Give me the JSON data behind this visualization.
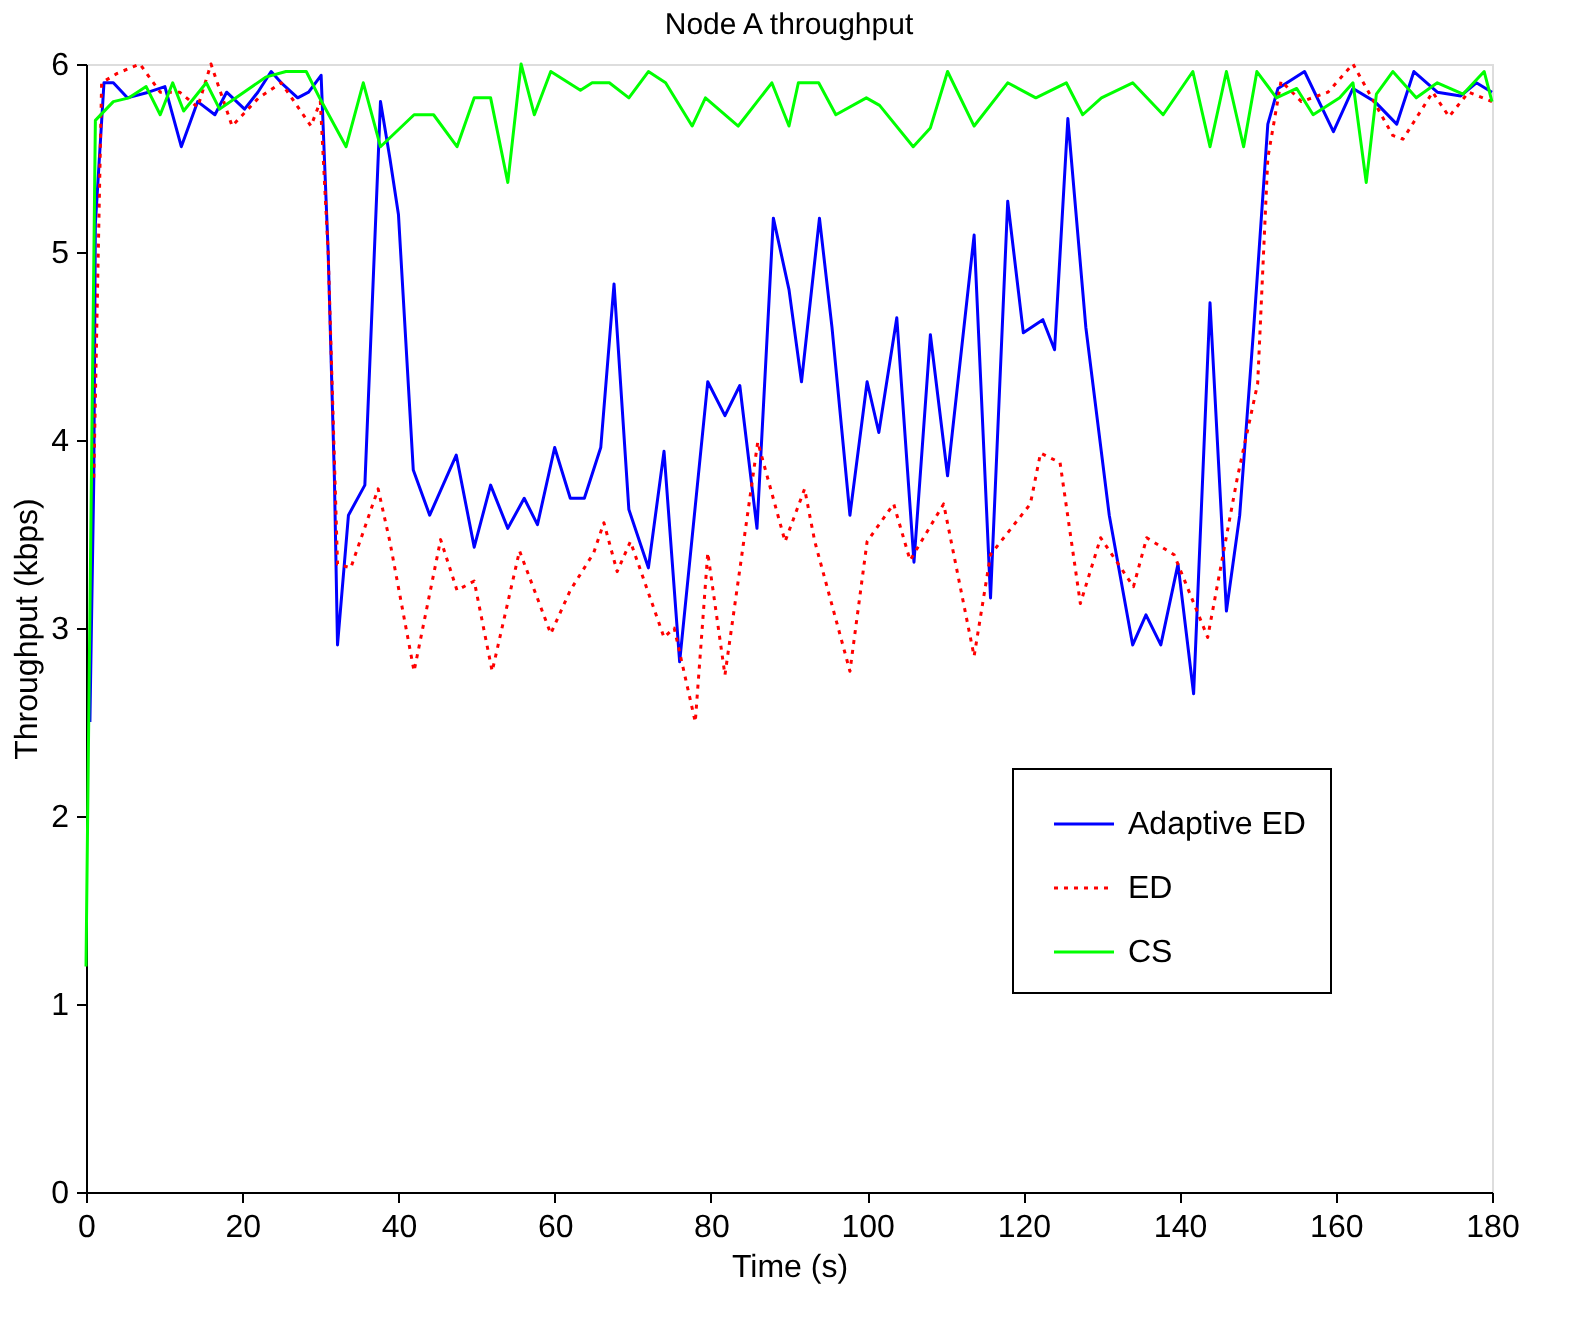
{
  "chart_data": {
    "type": "line",
    "title": "Node A throughput",
    "xlabel": "Time (s)",
    "ylabel": "Throughput (kbps)",
    "xlim": [
      0,
      180
    ],
    "xticks": [
      0,
      20,
      40,
      60,
      80,
      100,
      120,
      140,
      160,
      180
    ],
    "ylim": [
      0,
      6
    ],
    "yticks": [
      0,
      1,
      2,
      3,
      4,
      5,
      6
    ],
    "grid": false,
    "legend": "right",
    "marker": "none",
    "series": [
      {
        "name": "Adaptive ED",
        "color": "#0000ff",
        "line_style": "solid",
        "x": [
          0.5,
          1,
          1.2,
          2.3,
          3.5,
          5.3,
          8,
          10.1,
          12.2,
          14.3,
          16.5,
          18,
          20.3,
          22,
          23.7,
          25,
          27.1,
          28.5,
          30.1,
          31,
          31.8,
          32.2,
          33.6,
          35.7,
          37.7,
          38.9,
          40,
          41.9,
          44,
          47.4,
          49.7,
          51.8,
          54,
          56.1,
          57.8,
          60,
          62,
          63.8,
          65.9,
          67.6,
          69.5,
          72,
          74,
          76,
          79.6,
          81.8,
          83.7,
          85.9,
          88,
          90,
          91.6,
          93.9,
          95.5,
          97.8,
          100,
          101.5,
          103.8,
          106,
          108.1,
          110.3,
          113.7,
          115.8,
          118,
          120,
          122.5,
          124,
          125.7,
          128,
          131,
          134,
          135.7,
          137.6,
          139.8,
          141.8,
          143.9,
          146,
          147.7,
          149.5,
          151.3,
          152.6,
          156,
          159.7,
          162.2,
          165,
          167.8,
          170,
          173,
          176,
          178,
          180
        ],
        "values": [
          2.5,
          3.8,
          5.15,
          5.9,
          5.9,
          5.82,
          5.85,
          5.88,
          5.56,
          5.8,
          5.73,
          5.85,
          5.76,
          5.85,
          5.96,
          5.9,
          5.82,
          5.85,
          5.94,
          5.0,
          3.8,
          2.91,
          3.6,
          3.76,
          5.8,
          5.5,
          5.2,
          3.84,
          3.6,
          3.92,
          3.43,
          3.76,
          3.53,
          3.69,
          3.55,
          3.96,
          3.69,
          3.69,
          3.96,
          4.83,
          3.63,
          3.32,
          3.94,
          2.82,
          4.31,
          4.13,
          4.29,
          3.53,
          5.18,
          4.8,
          4.31,
          5.18,
          4.6,
          3.6,
          4.31,
          4.04,
          4.65,
          3.35,
          4.56,
          3.81,
          5.09,
          3.16,
          5.27,
          4.57,
          4.64,
          4.48,
          5.71,
          4.6,
          3.6,
          2.91,
          3.07,
          2.91,
          3.34,
          2.65,
          4.73,
          3.09,
          3.6,
          4.6,
          5.68,
          5.87,
          5.96,
          5.64,
          5.87,
          5.8,
          5.68,
          5.96,
          5.85,
          5.83,
          5.9,
          5.85
        ]
      },
      {
        "name": "ED",
        "color": "#ff0000",
        "line_style": "dotted",
        "x": [
          1,
          2,
          4,
          6.9,
          9.5,
          12,
          14.3,
          16,
          18.7,
          22.1,
          25,
          28.8,
          30,
          31,
          32.2,
          33.9,
          37.4,
          38.9,
          42,
          45.4,
          47.5,
          49.7,
          52,
          55.5,
          59.5,
          62,
          65,
          66.3,
          68,
          69.7,
          74,
          75.3,
          78,
          79.6,
          81.8,
          86,
          89.5,
          92,
          93.3,
          97.8,
          100,
          103.4,
          105.5,
          109.8,
          113.7,
          115.8,
          120.9,
          122.2,
          124.7,
          127.3,
          129.9,
          134.1,
          135.8,
          139.3,
          143.6,
          147.4,
          150,
          151.3,
          153,
          155.6,
          159,
          162.2,
          167.3,
          168.6,
          172.4,
          174.5,
          177,
          180
        ],
        "values": [
          3.8,
          5.9,
          5.95,
          6.0,
          5.85,
          5.85,
          5.77,
          6.0,
          5.67,
          5.82,
          5.9,
          5.67,
          5.8,
          5.0,
          3.34,
          3.32,
          3.74,
          3.46,
          2.77,
          3.47,
          3.2,
          3.25,
          2.77,
          3.41,
          2.97,
          3.2,
          3.4,
          3.56,
          3.3,
          3.46,
          2.95,
          3.0,
          2.5,
          3.4,
          2.75,
          3.99,
          3.46,
          3.74,
          3.46,
          2.77,
          3.46,
          3.66,
          3.36,
          3.66,
          2.85,
          3.39,
          3.66,
          3.93,
          3.88,
          3.13,
          3.48,
          3.22,
          3.48,
          3.39,
          2.95,
          3.8,
          4.3,
          5.5,
          5.91,
          5.8,
          5.85,
          6.0,
          5.62,
          5.6,
          5.85,
          5.72,
          5.85,
          5.8
        ]
      },
      {
        "name": "CS",
        "color": "#00ff00",
        "line_style": "solid",
        "x": [
          0,
          1.2,
          3.5,
          5.5,
          7.7,
          9.5,
          11.1,
          12.5,
          15.4,
          17.1,
          19.2,
          23,
          25.6,
          28.2,
          29.9,
          33.3,
          35.5,
          37.7,
          42,
          44.5,
          47.5,
          49.7,
          51.8,
          54,
          55.7,
          57.4,
          59.5,
          63.3,
          64.8,
          67,
          69.5,
          72,
          74.2,
          77.6,
          79.3,
          83.5,
          87.8,
          90,
          91.2,
          93.8,
          96,
          99.9,
          101.6,
          105.9,
          108.1,
          110.3,
          113.7,
          118,
          121.6,
          125.5,
          127.6,
          130,
          134,
          137.9,
          141.7,
          143.9,
          146,
          148.2,
          149.9,
          152.4,
          155,
          157.1,
          160.5,
          162.2,
          163.9,
          165.2,
          167.3,
          170.3,
          173,
          176.3,
          179,
          180
        ],
        "values": [
          1.2,
          5.7,
          5.8,
          5.82,
          5.88,
          5.73,
          5.9,
          5.75,
          5.9,
          5.76,
          5.82,
          5.93,
          5.96,
          5.96,
          5.82,
          5.56,
          5.9,
          5.56,
          5.73,
          5.73,
          5.56,
          5.82,
          5.82,
          5.37,
          6.0,
          5.73,
          5.96,
          5.86,
          5.9,
          5.9,
          5.82,
          5.96,
          5.9,
          5.67,
          5.82,
          5.67,
          5.9,
          5.67,
          5.9,
          5.9,
          5.73,
          5.82,
          5.78,
          5.56,
          5.66,
          5.96,
          5.67,
          5.9,
          5.82,
          5.9,
          5.73,
          5.82,
          5.9,
          5.73,
          5.96,
          5.56,
          5.96,
          5.56,
          5.96,
          5.82,
          5.87,
          5.73,
          5.82,
          5.9,
          5.37,
          5.84,
          5.96,
          5.82,
          5.9,
          5.84,
          5.96,
          5.8
        ]
      }
    ]
  }
}
